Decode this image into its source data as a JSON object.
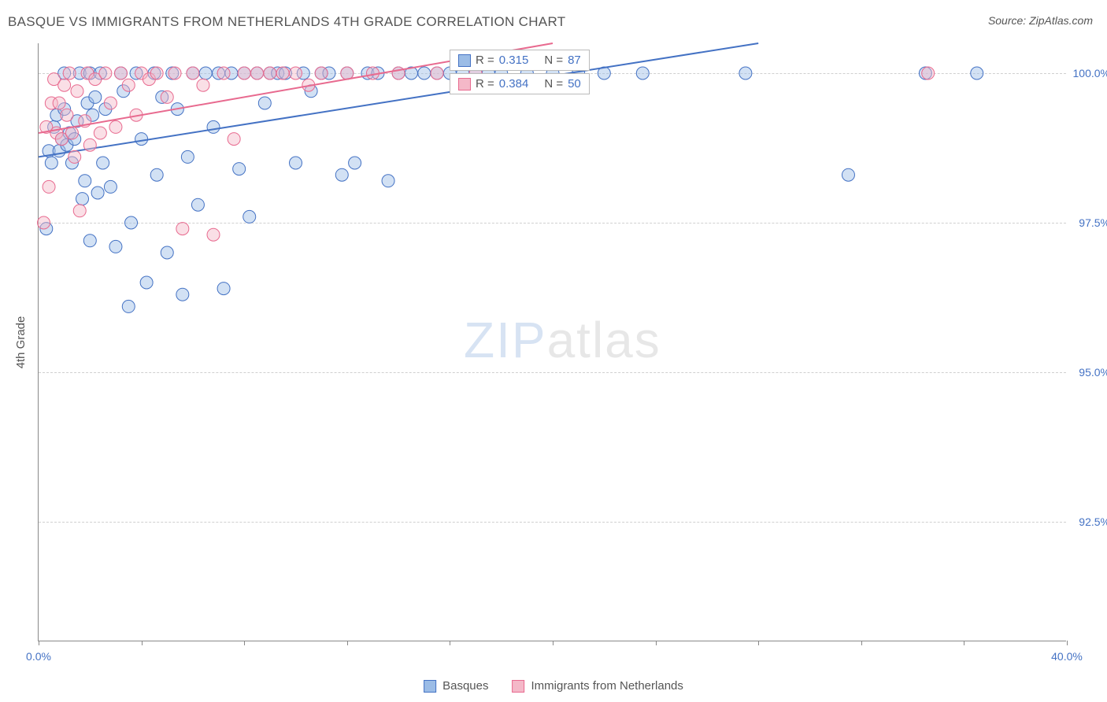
{
  "title": "BASQUE VS IMMIGRANTS FROM NETHERLANDS 4TH GRADE CORRELATION CHART",
  "source_label": "Source: ZipAtlas.com",
  "y_axis_label": "4th Grade",
  "watermark_zip": "ZIP",
  "watermark_atlas": "atlas",
  "chart": {
    "type": "scatter",
    "background_color": "#ffffff",
    "grid_color": "#d0d0d0",
    "axis_color": "#888888",
    "xlim": [
      0,
      40
    ],
    "ylim": [
      90.5,
      100.5
    ],
    "x_ticks": [
      0,
      4,
      8,
      12,
      16,
      20,
      24,
      28,
      32,
      36,
      40
    ],
    "x_tick_labels": {
      "0": "0.0%",
      "40": "40.0%"
    },
    "y_ticks": [
      92.5,
      95.0,
      97.5,
      100.0
    ],
    "y_tick_labels": [
      "92.5%",
      "95.0%",
      "97.5%",
      "100.0%"
    ],
    "marker_radius": 8,
    "marker_opacity": 0.45,
    "line_width": 2,
    "label_fontsize": 14,
    "title_fontsize": 17
  },
  "series": [
    {
      "id": "basques",
      "label": "Basques",
      "color_fill": "#9bbce6",
      "color_stroke": "#4472c4",
      "r_label": "R =",
      "r_value": "0.315",
      "n_label": "N =",
      "n_value": "87",
      "trend": {
        "x1": 0,
        "y1": 98.6,
        "x2": 28,
        "y2": 100.5
      },
      "points": [
        [
          0.3,
          97.4
        ],
        [
          0.4,
          98.7
        ],
        [
          0.5,
          98.5
        ],
        [
          0.6,
          99.1
        ],
        [
          0.7,
          99.3
        ],
        [
          0.8,
          98.7
        ],
        [
          0.9,
          98.9
        ],
        [
          1.0,
          99.4
        ],
        [
          1.0,
          100.0
        ],
        [
          1.1,
          98.8
        ],
        [
          1.2,
          99.0
        ],
        [
          1.3,
          98.5
        ],
        [
          1.4,
          98.9
        ],
        [
          1.5,
          99.2
        ],
        [
          1.6,
          100.0
        ],
        [
          1.7,
          97.9
        ],
        [
          1.8,
          98.2
        ],
        [
          1.9,
          99.5
        ],
        [
          2.0,
          97.2
        ],
        [
          2.0,
          100.0
        ],
        [
          2.1,
          99.3
        ],
        [
          2.2,
          99.6
        ],
        [
          2.3,
          98.0
        ],
        [
          2.4,
          100.0
        ],
        [
          2.5,
          98.5
        ],
        [
          2.6,
          99.4
        ],
        [
          2.8,
          98.1
        ],
        [
          3.0,
          97.1
        ],
        [
          3.2,
          100.0
        ],
        [
          3.3,
          99.7
        ],
        [
          3.5,
          96.1
        ],
        [
          3.6,
          97.5
        ],
        [
          3.8,
          100.0
        ],
        [
          4.0,
          98.9
        ],
        [
          4.2,
          96.5
        ],
        [
          4.5,
          100.0
        ],
        [
          4.6,
          98.3
        ],
        [
          4.8,
          99.6
        ],
        [
          5.0,
          97.0
        ],
        [
          5.2,
          100.0
        ],
        [
          5.4,
          99.4
        ],
        [
          5.6,
          96.3
        ],
        [
          5.8,
          98.6
        ],
        [
          6.0,
          100.0
        ],
        [
          6.2,
          97.8
        ],
        [
          6.5,
          100.0
        ],
        [
          6.8,
          99.1
        ],
        [
          7.0,
          100.0
        ],
        [
          7.2,
          96.4
        ],
        [
          7.5,
          100.0
        ],
        [
          7.8,
          98.4
        ],
        [
          8.0,
          100.0
        ],
        [
          8.2,
          97.6
        ],
        [
          8.5,
          100.0
        ],
        [
          8.8,
          99.5
        ],
        [
          9.0,
          100.0
        ],
        [
          9.3,
          100.0
        ],
        [
          9.6,
          100.0
        ],
        [
          10.0,
          98.5
        ],
        [
          10.3,
          100.0
        ],
        [
          10.6,
          99.7
        ],
        [
          11.0,
          100.0
        ],
        [
          11.3,
          100.0
        ],
        [
          11.8,
          98.3
        ],
        [
          12.0,
          100.0
        ],
        [
          12.3,
          98.5
        ],
        [
          12.8,
          100.0
        ],
        [
          13.2,
          100.0
        ],
        [
          13.6,
          98.2
        ],
        [
          14.0,
          100.0
        ],
        [
          14.5,
          100.0
        ],
        [
          15.0,
          100.0
        ],
        [
          15.5,
          100.0
        ],
        [
          16.0,
          100.0
        ],
        [
          16.5,
          100.0
        ],
        [
          17.0,
          100.0
        ],
        [
          17.5,
          100.0
        ],
        [
          18.0,
          100.0
        ],
        [
          19.0,
          100.0
        ],
        [
          20.0,
          100.0
        ],
        [
          21.0,
          100.0
        ],
        [
          22.0,
          100.0
        ],
        [
          23.5,
          100.0
        ],
        [
          27.5,
          100.0
        ],
        [
          31.5,
          98.3
        ],
        [
          34.5,
          100.0
        ],
        [
          36.5,
          100.0
        ]
      ]
    },
    {
      "id": "netherlands",
      "label": "Immigrants from Netherlands",
      "color_fill": "#f4b8c8",
      "color_stroke": "#e86a8f",
      "r_label": "R =",
      "r_value": "0.384",
      "n_label": "N =",
      "n_value": "50",
      "trend": {
        "x1": 0,
        "y1": 99.0,
        "x2": 20,
        "y2": 100.5
      },
      "points": [
        [
          0.2,
          97.5
        ],
        [
          0.3,
          99.1
        ],
        [
          0.4,
          98.1
        ],
        [
          0.5,
          99.5
        ],
        [
          0.6,
          99.9
        ],
        [
          0.7,
          99.0
        ],
        [
          0.8,
          99.5
        ],
        [
          0.9,
          98.9
        ],
        [
          1.0,
          99.8
        ],
        [
          1.1,
          99.3
        ],
        [
          1.2,
          100.0
        ],
        [
          1.3,
          99.0
        ],
        [
          1.4,
          98.6
        ],
        [
          1.5,
          99.7
        ],
        [
          1.6,
          97.7
        ],
        [
          1.8,
          99.2
        ],
        [
          1.9,
          100.0
        ],
        [
          2.0,
          98.8
        ],
        [
          2.2,
          99.9
        ],
        [
          2.4,
          99.0
        ],
        [
          2.6,
          100.0
        ],
        [
          2.8,
          99.5
        ],
        [
          3.0,
          99.1
        ],
        [
          3.2,
          100.0
        ],
        [
          3.5,
          99.8
        ],
        [
          3.8,
          99.3
        ],
        [
          4.0,
          100.0
        ],
        [
          4.3,
          99.9
        ],
        [
          4.6,
          100.0
        ],
        [
          5.0,
          99.6
        ],
        [
          5.3,
          100.0
        ],
        [
          5.6,
          97.4
        ],
        [
          6.0,
          100.0
        ],
        [
          6.4,
          99.8
        ],
        [
          6.8,
          97.3
        ],
        [
          7.2,
          100.0
        ],
        [
          7.6,
          98.9
        ],
        [
          8.0,
          100.0
        ],
        [
          8.5,
          100.0
        ],
        [
          9.0,
          100.0
        ],
        [
          9.5,
          100.0
        ],
        [
          10.0,
          100.0
        ],
        [
          10.5,
          99.8
        ],
        [
          11.0,
          100.0
        ],
        [
          12.0,
          100.0
        ],
        [
          13.0,
          100.0
        ],
        [
          14.0,
          100.0
        ],
        [
          15.5,
          100.0
        ],
        [
          17.0,
          100.0
        ],
        [
          34.6,
          100.0
        ]
      ]
    }
  ],
  "legend": {
    "items": [
      {
        "ref": "basques"
      },
      {
        "ref": "netherlands"
      }
    ]
  },
  "corr_boxes": {
    "box1_ref": "basques",
    "box2_ref": "netherlands"
  }
}
